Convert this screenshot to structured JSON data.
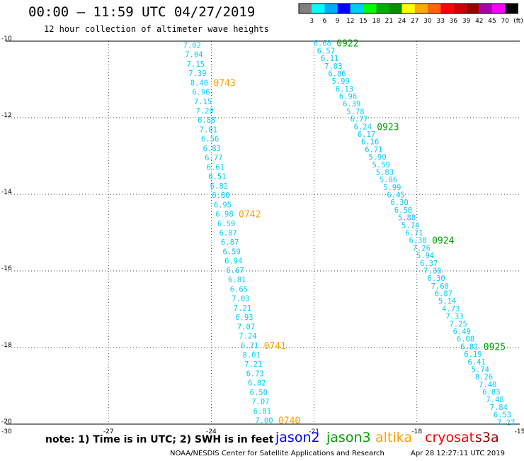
{
  "header": {
    "title": "00:00 – 11:59 UTC 04/27/2019",
    "subtitle": "12 hour collection of altimeter wave heights"
  },
  "colorbar": {
    "unit": "(ft)",
    "labels": [
      "3",
      "6",
      "9",
      "12",
      "15",
      "18",
      "21",
      "24",
      "27",
      "30",
      "33",
      "36",
      "39",
      "42",
      "45",
      "70"
    ],
    "colors": [
      "#808080",
      "#00ffff",
      "#00aaff",
      "#0000ff",
      "#00ccff",
      "#00ff00",
      "#00b000",
      "#009000",
      "#ffff00",
      "#ffaa00",
      "#ff6600",
      "#ff0000",
      "#cc0000",
      "#990000",
      "#aa00aa",
      "#ff00ff",
      "#000000"
    ]
  },
  "note": "note: 1) Time is in UTC; 2) SWH is in feet",
  "satellites": [
    {
      "name": "jason2",
      "color": "#0000ff"
    },
    {
      "name": "jason3",
      "color": "#00a000"
    },
    {
      "name": "altika",
      "color": "#ffa000"
    },
    {
      "name": "cryosat",
      "color": "#ff0000"
    },
    {
      "name": "s3a",
      "color": "#990000"
    }
  ],
  "footer": {
    "credit": "NOAA/NESDIS Center for Satellite Applications and Research",
    "timestamp": "Apr 28 12:27:11 UTC 2019"
  },
  "chart_data": {
    "type": "scatter",
    "xlim": [
      -30,
      -15
    ],
    "ylim": [
      -20,
      -10
    ],
    "x_ticks": [
      "-30",
      "-27",
      "-24",
      "-21",
      "-18",
      "-15"
    ],
    "y_ticks": [
      "-10",
      "-12",
      "-14",
      "-16",
      "-18",
      "-20"
    ],
    "grid": true,
    "value_color": "#00ccff",
    "tracks": [
      {
        "satellite": "altika",
        "start": [
          -24.56,
          -10.1
        ],
        "end": [
          -22.46,
          -19.9
        ],
        "values": [
          "7.02",
          "7.04",
          "7.15",
          "7.39",
          "8.40",
          "6.96",
          "7.15",
          "7.20",
          "6.88",
          "7.01",
          "6.56",
          "6.83",
          "6.77",
          "6.61",
          "6.51",
          "6.82",
          "6.80",
          "6.95",
          "6.98",
          "6.59",
          "6.87",
          "6.87",
          "6.59",
          "6.94",
          "6.67",
          "6.81",
          "6.65",
          "7.03",
          "7.21",
          "6.93",
          "7.07",
          "7.24",
          "6.71",
          "8.01",
          "7.21",
          "6.73",
          "6.82",
          "6.50",
          "7.07",
          "6.81",
          "7.00"
        ],
        "time_labels": [
          {
            "text": "0743",
            "index": 4,
            "color": "#ffa000"
          },
          {
            "text": "0742",
            "index": 18,
            "color": "#ffa000"
          },
          {
            "text": "0741",
            "index": 32,
            "color": "#ffa000"
          },
          {
            "text": "0740",
            "index": 40,
            "color": "#ffa000"
          }
        ]
      },
      {
        "satellite": "jason3",
        "start": [
          -20.76,
          -10.05
        ],
        "end": [
          -15.4,
          -19.95
        ],
        "values": [
          "6.68",
          "6.57",
          "6.11",
          "7.03",
          "6.86",
          "5.99",
          "6.13",
          "6.96",
          "6.39",
          "5.78",
          "6.77",
          "6.24",
          "6.17",
          "6.16",
          "6.71",
          "5.90",
          "5.59",
          "5.83",
          "5.86",
          "5.99",
          "6.45",
          "6.30",
          "6.50",
          "5.88",
          "5.74",
          "6.71",
          "6.38",
          "7.26",
          "5.94",
          "6.37",
          "7.30",
          "6.30",
          "7.60",
          "6.87",
          "5.14",
          "4.73",
          "7.33",
          "7.25",
          "6.49",
          "6.08",
          "6.82",
          "6.19",
          "6.41",
          "5.74",
          "8.26",
          "7.40",
          "6.83",
          "7.48",
          "7.84",
          "6.53",
          "7.27"
        ],
        "time_labels": [
          {
            "text": "0922",
            "index": 0,
            "color": "#00a000"
          },
          {
            "text": "0923",
            "index": 11,
            "color": "#00a000"
          },
          {
            "text": "0924",
            "index": 26,
            "color": "#00a000"
          },
          {
            "text": "0925",
            "index": 40,
            "color": "#00a000"
          }
        ]
      }
    ]
  }
}
